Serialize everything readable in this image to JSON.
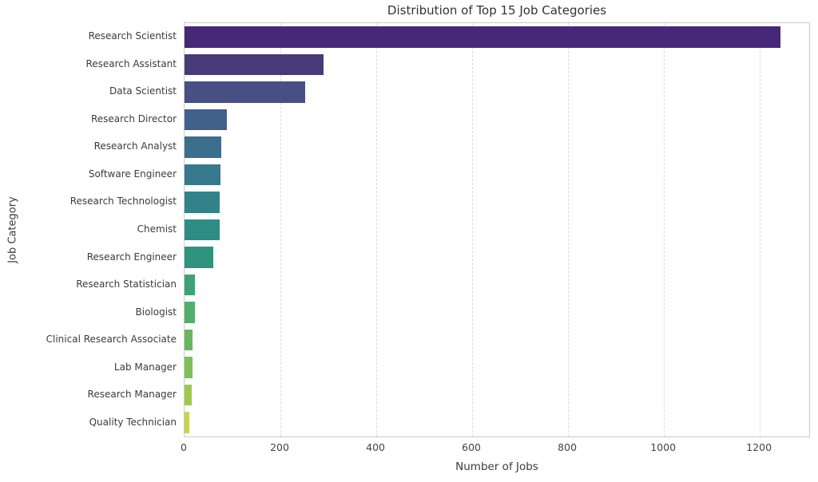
{
  "chart_data": {
    "type": "bar",
    "orientation": "horizontal",
    "title": "Distribution of Top 15 Job Categories",
    "xlabel": "Number of Jobs",
    "ylabel": "Job Category",
    "categories": [
      "Research Scientist",
      "Research Assistant",
      "Data Scientist",
      "Research Director",
      "Research Analyst",
      "Software Engineer",
      "Research Technologist",
      "Chemist",
      "Research Engineer",
      "Research Statistician",
      "Biologist",
      "Clinical Research Associate",
      "Lab Manager",
      "Research Manager",
      "Quality Technician"
    ],
    "values": [
      1243,
      290,
      252,
      88,
      77,
      75,
      74,
      73,
      60,
      22,
      21,
      17,
      17,
      15,
      10
    ],
    "bar_colors": [
      "#472777",
      "#483a79",
      "#474f85",
      "#42608c",
      "#3c6e8d",
      "#36798c",
      "#318389",
      "#2e8c86",
      "#2e947f",
      "#3ea276",
      "#52af6b",
      "#66b75e",
      "#7fc054",
      "#9eca4b",
      "#c8d54a"
    ],
    "xlim": [
      0,
      1303
    ],
    "x_ticks": [
      0,
      200,
      400,
      600,
      800,
      1000,
      1200
    ],
    "grid": "vertical-dashed",
    "legend": "none",
    "palette_name": "viridis",
    "style_colors": {
      "background": "#ffffff",
      "spine": "#cbcbcb",
      "gridline": "#dcdcdc",
      "title_text": "#333333",
      "axis_label_text": "#3b3b3b",
      "tick_text": "#444444"
    }
  }
}
